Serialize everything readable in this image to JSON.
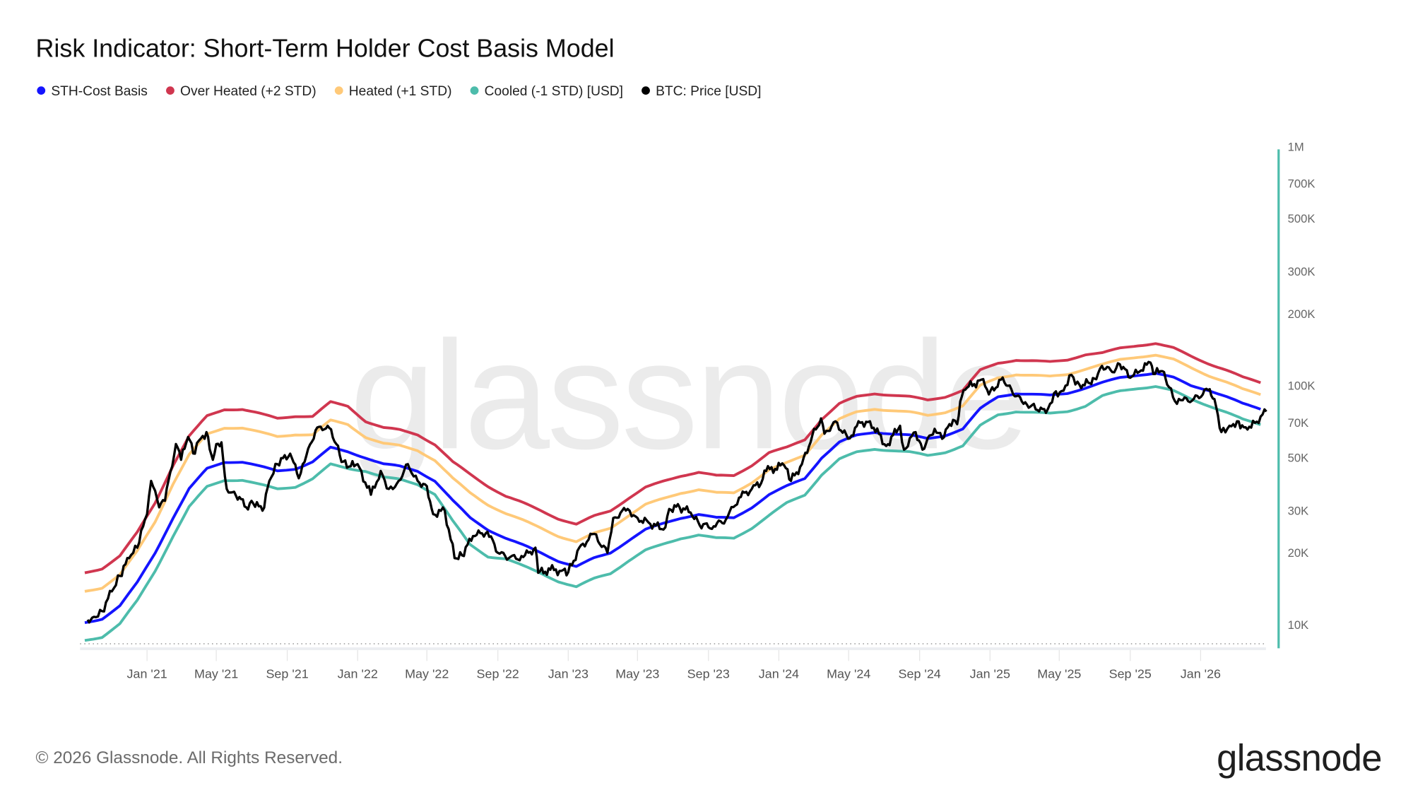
{
  "title": "Risk Indicator: Short-Term Holder Cost Basis Model",
  "legend": [
    {
      "label": "STH-Cost Basis",
      "color": "#1414ff"
    },
    {
      "label": "Over Heated (+2 STD)",
      "color": "#d0364f"
    },
    {
      "label": "Heated (+1 STD)",
      "color": "#ffc978"
    },
    {
      "label": "Cooled (-1 STD) [USD]",
      "color": "#4dbcab"
    },
    {
      "label": "BTC: Price [USD]",
      "color": "#000000"
    }
  ],
  "watermark": "glassnode",
  "footer": {
    "copyright": "© 2026 Glassnode. All Rights Reserved.",
    "logo": "glassnode"
  },
  "chart_data": {
    "type": "line",
    "title": "Risk Indicator: Short-Term Holder Cost Basis Model",
    "y_scale": "log",
    "ylim": [
      8000,
      1000000
    ],
    "y_axis_color": "#4dbcab",
    "y_ticks": [
      {
        "value": 1000000,
        "label": "1M"
      },
      {
        "value": 700000,
        "label": "700K"
      },
      {
        "value": 500000,
        "label": "500K"
      },
      {
        "value": 300000,
        "label": "300K"
      },
      {
        "value": 200000,
        "label": "200K"
      },
      {
        "value": 100000,
        "label": "100K"
      },
      {
        "value": 70000,
        "label": "70K"
      },
      {
        "value": 50000,
        "label": "50K"
      },
      {
        "value": 30000,
        "label": "30K"
      },
      {
        "value": 20000,
        "label": "20K"
      },
      {
        "value": 10000,
        "label": "10K"
      }
    ],
    "x_ticks": [
      {
        "date": "2021-01-01",
        "label": "Jan '21"
      },
      {
        "date": "2021-05-01",
        "label": "May '21"
      },
      {
        "date": "2021-09-01",
        "label": "Sep '21"
      },
      {
        "date": "2022-01-01",
        "label": "Jan '22"
      },
      {
        "date": "2022-05-01",
        "label": "May '22"
      },
      {
        "date": "2022-09-01",
        "label": "Sep '22"
      },
      {
        "date": "2023-01-01",
        "label": "Jan '23"
      },
      {
        "date": "2023-05-01",
        "label": "May '23"
      },
      {
        "date": "2023-09-01",
        "label": "Sep '23"
      },
      {
        "date": "2024-01-01",
        "label": "Jan '24"
      },
      {
        "date": "2024-05-01",
        "label": "May '24"
      },
      {
        "date": "2024-09-01",
        "label": "Sep '24"
      },
      {
        "date": "2025-01-01",
        "label": "Jan '25"
      },
      {
        "date": "2025-05-01",
        "label": "May '25"
      },
      {
        "date": "2025-09-01",
        "label": "Sep '25"
      },
      {
        "date": "2026-01-01",
        "label": "Jan '26"
      }
    ],
    "grid": false,
    "legend_position": "top-left",
    "band_dates": [
      "2020-09",
      "2020-10",
      "2020-11",
      "2020-12",
      "2021-01",
      "2021-02",
      "2021-03",
      "2021-04",
      "2021-05",
      "2021-06",
      "2021-07",
      "2021-08",
      "2021-09",
      "2021-10",
      "2021-11",
      "2021-12",
      "2022-01",
      "2022-02",
      "2022-03",
      "2022-04",
      "2022-05",
      "2022-06",
      "2022-07",
      "2022-08",
      "2022-09",
      "2022-10",
      "2022-11",
      "2022-12",
      "2023-01",
      "2023-02",
      "2023-03",
      "2023-04",
      "2023-05",
      "2023-06",
      "2023-07",
      "2023-08",
      "2023-09",
      "2023-10",
      "2023-11",
      "2023-12",
      "2024-01",
      "2024-02",
      "2024-03",
      "2024-04",
      "2024-05",
      "2024-06",
      "2024-07",
      "2024-08",
      "2024-09",
      "2024-10",
      "2024-11",
      "2024-12",
      "2025-01",
      "2025-02",
      "2025-03",
      "2025-04",
      "2025-05",
      "2025-06",
      "2025-07",
      "2025-08",
      "2025-09",
      "2025-10",
      "2025-11",
      "2025-12",
      "2026-01",
      "2026-02",
      "2026-03",
      "2026-04"
    ],
    "series": [
      {
        "name": "Over Heated (+2 STD)",
        "color": "#d0364f",
        "values": [
          16500,
          17200,
          19400,
          24300,
          32400,
          46500,
          61400,
          74700,
          79700,
          79700,
          76400,
          73000,
          74700,
          74400,
          85300,
          82200,
          71000,
          66700,
          65300,
          62500,
          56800,
          47900,
          42600,
          38000,
          34500,
          32300,
          30000,
          27800,
          26300,
          28500,
          30000,
          33800,
          37500,
          39800,
          42000,
          43500,
          42000,
          42000,
          46500,
          52500,
          55100,
          59500,
          72500,
          84100,
          89900,
          92800,
          91400,
          89900,
          87000,
          89900,
          95700,
          116000,
          124200,
          128300,
          127000,
          125600,
          128300,
          135200,
          137000,
          143600,
          147600,
          150300,
          143600,
          133000,
          123800,
          116100,
          108400,
          103200
        ]
      },
      {
        "name": "Heated (+1 STD)",
        "color": "#ffc978",
        "values": [
          13800,
          14300,
          16200,
          20300,
          27000,
          38900,
          51400,
          62600,
          66700,
          66700,
          63900,
          61200,
          62600,
          62400,
          71500,
          68900,
          61000,
          57300,
          56100,
          53700,
          48800,
          40900,
          35600,
          31800,
          29200,
          27300,
          25400,
          23500,
          22200,
          24100,
          25400,
          28600,
          31800,
          33700,
          35600,
          36800,
          35600,
          35600,
          39400,
          44500,
          47500,
          51300,
          62500,
          72500,
          77500,
          80000,
          78800,
          77500,
          75000,
          77500,
          82500,
          100000,
          108000,
          111600,
          110400,
          109200,
          111600,
          117600,
          122600,
          128500,
          132100,
          134500,
          128500,
          119000,
          110400,
          103500,
          96600,
          92000
        ]
      },
      {
        "name": "Cooled (-1 STD) [USD]",
        "color": "#4dbcab",
        "values": [
          8600,
          8900,
          10100,
          12600,
          16800,
          23500,
          31100,
          37800,
          40300,
          40300,
          38600,
          37000,
          37800,
          40800,
          46800,
          45100,
          44000,
          41400,
          40500,
          38700,
          35200,
          27100,
          21600,
          19300,
          18900,
          17600,
          16400,
          15200,
          14400,
          15600,
          16400,
          18500,
          20500,
          21700,
          23000,
          23800,
          23000,
          23000,
          25400,
          28700,
          32300,
          34900,
          42500,
          49300,
          52700,
          54400,
          53600,
          52700,
          51000,
          52700,
          56100,
          68000,
          75600,
          78100,
          77300,
          76400,
          78100,
          82300,
          90600,
          95000,
          97700,
          99400,
          95000,
          88000,
          82600,
          77400,
          72200,
          68800
        ]
      },
      {
        "name": "STH-Cost Basis",
        "color": "#1414ff",
        "values": [
          10200,
          10600,
          12000,
          15000,
          20000,
          28000,
          37000,
          45000,
          48000,
          48000,
          46000,
          44000,
          45000,
          48000,
          55000,
          53000,
          50000,
          47000,
          46000,
          44000,
          40000,
          33000,
          28000,
          25000,
          23000,
          21500,
          20000,
          18500,
          17500,
          19000,
          20000,
          22500,
          25000,
          26500,
          28000,
          29000,
          28000,
          28000,
          31000,
          35000,
          38000,
          41000,
          50000,
          58000,
          62000,
          64000,
          63000,
          62000,
          60000,
          62000,
          66000,
          80000,
          90000,
          93000,
          92000,
          91000,
          93000,
          98000,
          103000,
          108000,
          111000,
          113000,
          108000,
          100000,
          96000,
          90000,
          84000,
          80000
        ]
      }
    ],
    "price": {
      "name": "BTC: Price [USD]",
      "color": "#000000",
      "points": [
        [
          "2020-09-20",
          10500
        ],
        [
          "2020-10-01",
          10800
        ],
        [
          "2020-10-15",
          11400
        ],
        [
          "2020-11-01",
          13800
        ],
        [
          "2020-11-15",
          16000
        ],
        [
          "2020-12-01",
          19000
        ],
        [
          "2020-12-15",
          21000
        ],
        [
          "2021-01-01",
          29000
        ],
        [
          "2021-01-08",
          40000
        ],
        [
          "2021-01-22",
          31000
        ],
        [
          "2021-02-01",
          33000
        ],
        [
          "2021-02-20",
          57000
        ],
        [
          "2021-03-01",
          49000
        ],
        [
          "2021-03-13",
          61000
        ],
        [
          "2021-03-25",
          52000
        ],
        [
          "2021-04-01",
          59000
        ],
        [
          "2021-04-14",
          64000
        ],
        [
          "2021-04-25",
          49000
        ],
        [
          "2021-05-01",
          57000
        ],
        [
          "2021-05-10",
          58000
        ],
        [
          "2021-05-19",
          37000
        ],
        [
          "2021-06-01",
          36000
        ],
        [
          "2021-06-22",
          31000
        ],
        [
          "2021-07-01",
          33000
        ],
        [
          "2021-07-20",
          30000
        ],
        [
          "2021-08-01",
          40000
        ],
        [
          "2021-08-15",
          47000
        ],
        [
          "2021-09-06",
          52000
        ],
        [
          "2021-09-21",
          41000
        ],
        [
          "2021-10-01",
          48000
        ],
        [
          "2021-10-20",
          65000
        ],
        [
          "2021-11-10",
          68000
        ],
        [
          "2021-11-25",
          57000
        ],
        [
          "2021-12-04",
          48000
        ],
        [
          "2021-12-20",
          46000
        ],
        [
          "2022-01-01",
          47000
        ],
        [
          "2022-01-24",
          35000
        ],
        [
          "2022-02-10",
          44000
        ],
        [
          "2022-02-24",
          37000
        ],
        [
          "2022-03-10",
          39000
        ],
        [
          "2022-03-29",
          47000
        ],
        [
          "2022-04-15",
          40000
        ],
        [
          "2022-05-01",
          38000
        ],
        [
          "2022-05-12",
          29000
        ],
        [
          "2022-06-01",
          30000
        ],
        [
          "2022-06-18",
          19000
        ],
        [
          "2022-07-01",
          19500
        ],
        [
          "2022-07-20",
          23500
        ],
        [
          "2022-08-14",
          24500
        ],
        [
          "2022-09-01",
          20000
        ],
        [
          "2022-09-20",
          19000
        ],
        [
          "2022-10-15",
          19200
        ],
        [
          "2022-11-05",
          21000
        ],
        [
          "2022-11-10",
          16500
        ],
        [
          "2022-12-01",
          17000
        ],
        [
          "2022-12-20",
          16800
        ],
        [
          "2023-01-01",
          16600
        ],
        [
          "2023-01-20",
          21000
        ],
        [
          "2023-02-15",
          24000
        ],
        [
          "2023-03-10",
          20000
        ],
        [
          "2023-03-20",
          28000
        ],
        [
          "2023-04-14",
          30500
        ],
        [
          "2023-05-01",
          28000
        ],
        [
          "2023-05-20",
          26800
        ],
        [
          "2023-06-15",
          25000
        ],
        [
          "2023-06-25",
          30500
        ],
        [
          "2023-07-13",
          31000
        ],
        [
          "2023-08-01",
          29500
        ],
        [
          "2023-08-17",
          26000
        ],
        [
          "2023-09-10",
          25800
        ],
        [
          "2023-10-01",
          27500
        ],
        [
          "2023-10-24",
          34000
        ],
        [
          "2023-11-15",
          37000
        ],
        [
          "2023-12-01",
          39000
        ],
        [
          "2023-12-10",
          44000
        ],
        [
          "2024-01-10",
          46500
        ],
        [
          "2024-01-22",
          40000
        ],
        [
          "2024-02-10",
          47000
        ],
        [
          "2024-02-28",
          62000
        ],
        [
          "2024-03-14",
          73000
        ],
        [
          "2024-03-20",
          63000
        ],
        [
          "2024-04-08",
          71000
        ],
        [
          "2024-04-30",
          60000
        ],
        [
          "2024-05-21",
          70000
        ],
        [
          "2024-06-07",
          71000
        ],
        [
          "2024-07-05",
          56000
        ],
        [
          "2024-07-29",
          68000
        ],
        [
          "2024-08-05",
          54000
        ],
        [
          "2024-08-25",
          64000
        ],
        [
          "2024-09-06",
          54000
        ],
        [
          "2024-09-27",
          66000
        ],
        [
          "2024-10-10",
          60000
        ],
        [
          "2024-10-29",
          72000
        ],
        [
          "2024-11-05",
          69000
        ],
        [
          "2024-11-13",
          90000
        ],
        [
          "2024-11-22",
          98000
        ],
        [
          "2024-12-17",
          106000
        ],
        [
          "2024-12-30",
          92000
        ],
        [
          "2025-01-20",
          106000
        ],
        [
          "2025-02-01",
          100000
        ],
        [
          "2025-02-28",
          84000
        ],
        [
          "2025-03-15",
          83000
        ],
        [
          "2025-04-08",
          77000
        ],
        [
          "2025-04-22",
          93000
        ],
        [
          "2025-05-05",
          95000
        ],
        [
          "2025-05-22",
          111000
        ],
        [
          "2025-06-05",
          101000
        ],
        [
          "2025-06-20",
          103000
        ],
        [
          "2025-07-01",
          107000
        ],
        [
          "2025-07-14",
          121000
        ],
        [
          "2025-08-01",
          114000
        ],
        [
          "2025-08-14",
          123000
        ],
        [
          "2025-09-01",
          108000
        ],
        [
          "2025-09-20",
          116000
        ],
        [
          "2025-10-06",
          125000
        ],
        [
          "2025-10-11",
          112000
        ],
        [
          "2025-10-27",
          115000
        ],
        [
          "2025-11-04",
          101000
        ],
        [
          "2025-11-21",
          84000
        ],
        [
          "2025-12-01",
          87000
        ],
        [
          "2025-12-20",
          88000
        ],
        [
          "2026-01-14",
          96000
        ],
        [
          "2026-01-25",
          88000
        ],
        [
          "2026-02-06",
          64000
        ],
        [
          "2026-02-20",
          68000
        ],
        [
          "2026-03-05",
          71000
        ],
        [
          "2026-03-20",
          67000
        ],
        [
          "2026-04-05",
          70000
        ],
        [
          "2026-04-25",
          78000
        ]
      ]
    }
  }
}
